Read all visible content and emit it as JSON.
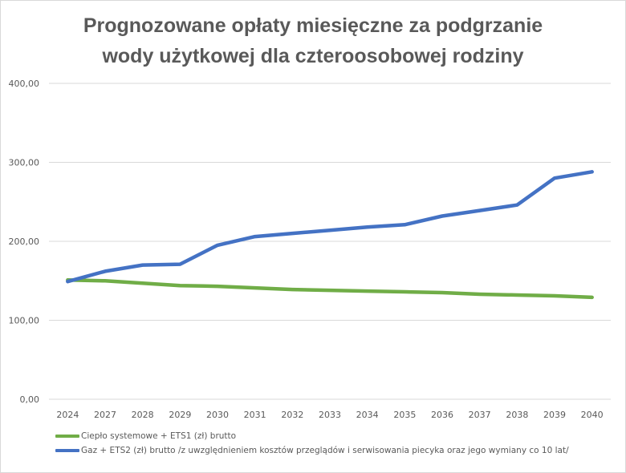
{
  "chart_data": {
    "type": "line",
    "title_lines": [
      "Prognozowane opłaty miesięczne za podgrzanie",
      "wody użytkowej dla czteroosobowej rodziny"
    ],
    "categories": [
      "2024",
      "2027",
      "2028",
      "2029",
      "2030",
      "2031",
      "2032",
      "2033",
      "2034",
      "2035",
      "2036",
      "2037",
      "2038",
      "2039",
      "2040"
    ],
    "ylim": [
      0,
      400
    ],
    "yticks": [
      0,
      100,
      200,
      300,
      400
    ],
    "ytick_labels": [
      "0,00",
      "100,00",
      "200,00",
      "300,00",
      "400,00"
    ],
    "grid": true,
    "legend_position": "bottom",
    "series": [
      {
        "name": "Ciepło systemowe + ETS1 (zł) brutto",
        "color": "#70ad47",
        "values": [
          151,
          150,
          147,
          144,
          143,
          141,
          139,
          138,
          137,
          136,
          135,
          133,
          132,
          131,
          129
        ]
      },
      {
        "name": "Gaz + ETS2 (zł) brutto /z uwzględnieniem kosztów przeglądów i serwisowania piecyka oraz jego wymiany co 10 lat/",
        "color": "#4472c4",
        "values": [
          149,
          162,
          170,
          171,
          195,
          206,
          210,
          214,
          218,
          221,
          232,
          239,
          246,
          280,
          288
        ]
      }
    ]
  }
}
